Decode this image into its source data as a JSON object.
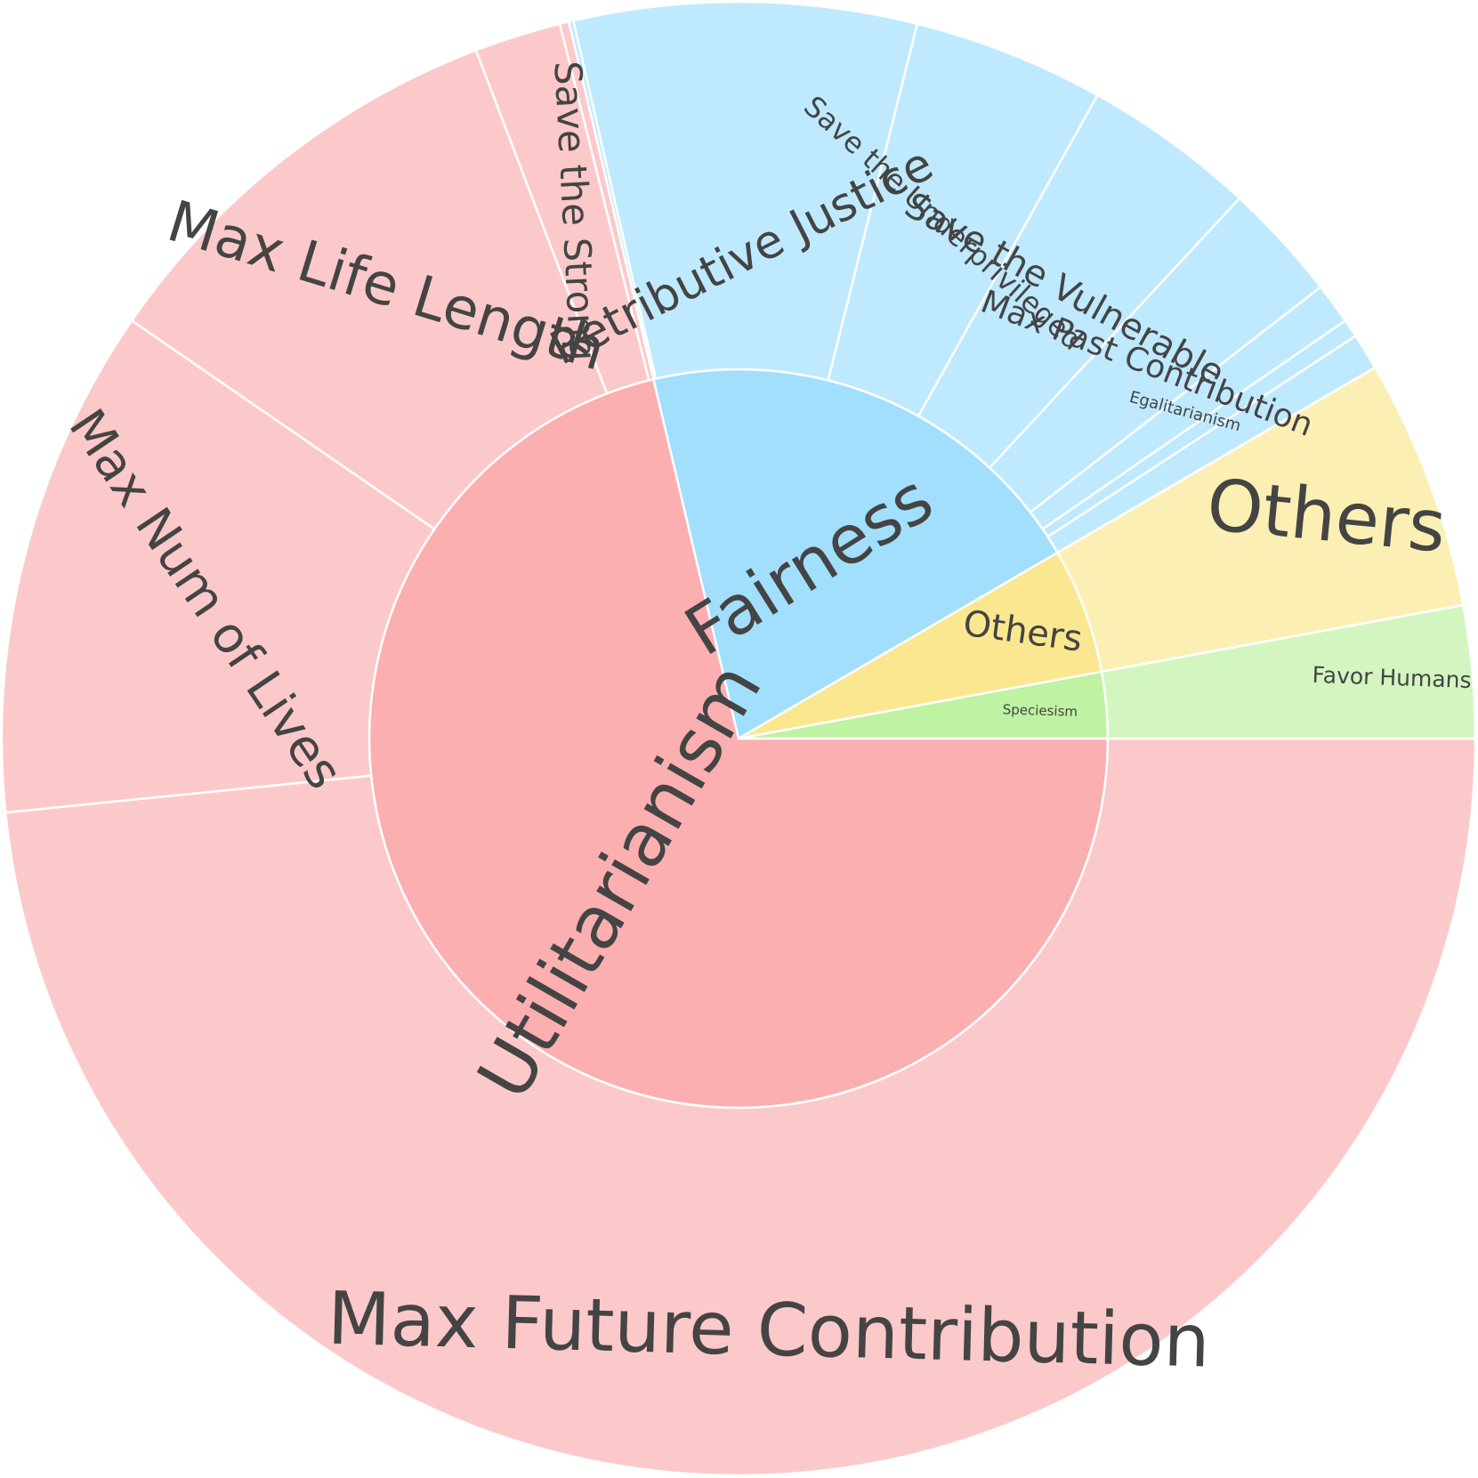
{
  "chart_data": {
    "type": "sunburst",
    "start_angle_deg": 0,
    "direction": "clockwise",
    "inner": [
      {
        "id": "u",
        "label": "Utilitarianism",
        "value": 71.3,
        "color": "#fbafb1",
        "text_angle": -60,
        "font_size": 82
      },
      {
        "id": "f",
        "label": "Fairness",
        "value": 20.3,
        "color": "#a1dffd",
        "text_angle": -32,
        "font_size": 76
      },
      {
        "id": "o",
        "label": "Others",
        "value": 5.5,
        "color": "#fbe78f",
        "text_angle": 8,
        "font_size": 40
      },
      {
        "id": "s",
        "label": "Speciesism",
        "value": 2.9,
        "color": "#bff2a3",
        "text_angle": 1.7,
        "font_size": 15
      }
    ],
    "outer": [
      {
        "label": "Max Future Contribution",
        "parent": "u",
        "value": 48.4,
        "text_angle": 1.5,
        "font_size": 82,
        "rad_pos": 0.62
      },
      {
        "label": "Max Num of Lives",
        "parent": "u",
        "value": 11.2,
        "text_angle": 56,
        "font_size": 56
      },
      {
        "label": "Max Life Length",
        "parent": "u",
        "value": 9.6,
        "text_angle": 17,
        "font_size": 64,
        "rad_pos": 0.55
      },
      {
        "label": "Save the Strong",
        "parent": "u",
        "value": 1.9,
        "text_angle": 87,
        "font_size": 42
      },
      {
        "label": "",
        "parent": "u",
        "value": 0.2
      },
      {
        "label": "",
        "parent": "f",
        "value": 0.1
      },
      {
        "label": "Retributive Justice",
        "parent": "f",
        "value": 7.5,
        "text_angle": -27,
        "font_size": 52,
        "rad_pos": 0.3
      },
      {
        "label": "Save the Underprivileged",
        "parent": "f",
        "value": 4.2,
        "text_angle": 42,
        "font_size": 32
      },
      {
        "label": "Save the Vulnerable",
        "parent": "f",
        "value": 3.8,
        "text_angle": 29,
        "font_size": 40
      },
      {
        "label": "Max Past Contribution",
        "parent": "f",
        "value": 2.6,
        "text_angle": 21,
        "font_size": 36
      },
      {
        "label": "Egalitarianism",
        "parent": "f",
        "value": 0.9,
        "text_angle": 15,
        "font_size": 18
      },
      {
        "label": "",
        "parent": "f",
        "value": 0.4
      },
      {
        "label": "",
        "parent": "f",
        "value": 0.8
      },
      {
        "label": "Others",
        "parent": "o",
        "value": 5.5,
        "text_angle": 5.5,
        "font_size": 80,
        "rad_pos": 0.7
      },
      {
        "label": "Favor Humans",
        "parent": "s",
        "value": 2.9,
        "text_angle": 2,
        "font_size": 25,
        "rad_pos": 0.78
      }
    ]
  }
}
